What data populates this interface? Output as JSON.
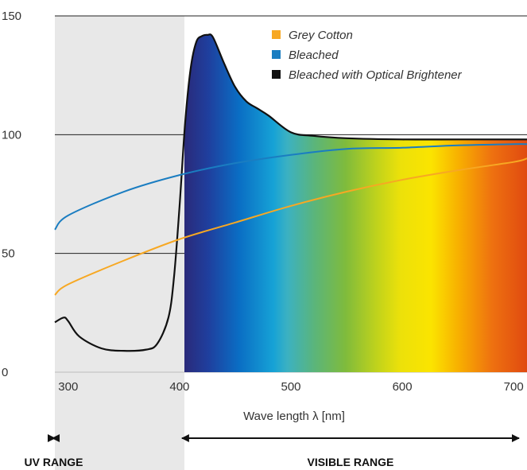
{
  "chart_data": {
    "type": "line",
    "xlabel": "Wave length λ [nm]",
    "ylabel": "",
    "xlim": [
      288,
      712
    ],
    "ylim": [
      0,
      150
    ],
    "x_ticks": [
      "300",
      "400",
      "500",
      "600",
      "700"
    ],
    "y_ticks": [
      "0",
      "50",
      "100",
      "150"
    ],
    "grid": "horizontal lines at y ticks",
    "legend_position": "top-right",
    "background": "visible spectrum gradient under the optical brightener curve from 400 to 712 nm; light grey shading over 288-400 nm",
    "series": [
      {
        "name": "Grey Cotton",
        "color": "#f7a823",
        "x": [
          288,
          300,
          350,
          400,
          450,
          500,
          550,
          600,
          650,
          700,
          712
        ],
        "y": [
          32.5,
          37,
          47,
          56,
          63,
          70,
          76,
          81,
          85,
          88.5,
          90
        ]
      },
      {
        "name": "Bleached",
        "color": "#1a7dc1",
        "x": [
          288,
          300,
          350,
          400,
          450,
          500,
          550,
          600,
          650,
          700,
          712
        ],
        "y": [
          60,
          66,
          76,
          83,
          88,
          91.5,
          94,
          94.5,
          95.5,
          96,
          96
        ]
      },
      {
        "name": "Bleached with Optical Brightener",
        "color": "#111111",
        "x": [
          288,
          296,
          300,
          310,
          330,
          350,
          370,
          380,
          390,
          395,
          400,
          405,
          410,
          415,
          420,
          425,
          430,
          440,
          450,
          460,
          470,
          480,
          500,
          520,
          550,
          600,
          650,
          700,
          712
        ],
        "y": [
          21,
          23,
          21.5,
          15,
          10,
          9,
          9.5,
          12,
          23,
          40,
          70,
          105,
          128,
          139,
          141.5,
          142,
          141,
          130,
          120,
          114,
          111,
          108,
          101,
          99.5,
          98.5,
          98,
          98,
          98,
          98
        ]
      }
    ],
    "ranges": [
      {
        "label": "UV RANGE",
        "from": 288,
        "to": 400
      },
      {
        "label": "VISIBLE RANGE",
        "from": 400,
        "to": 712
      }
    ]
  }
}
